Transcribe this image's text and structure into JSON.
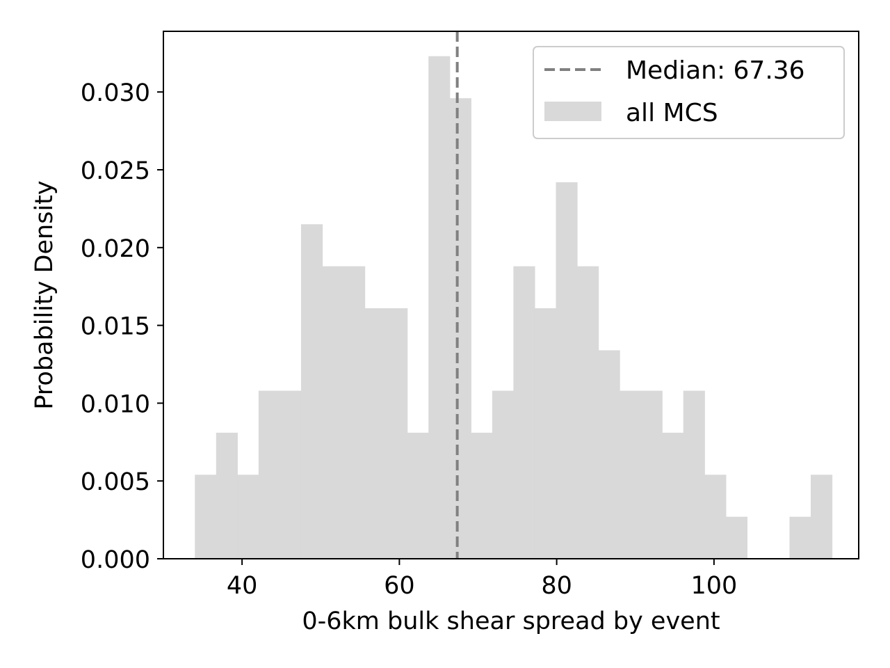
{
  "chart_data": {
    "type": "bar",
    "subtype": "histogram",
    "title": "",
    "xlabel": "0-6km bulk shear spread by event",
    "ylabel": "Probability Density",
    "xlim": [
      30,
      118.4
    ],
    "ylim": [
      0,
      0.0339
    ],
    "xticks": [
      40,
      60,
      80,
      100
    ],
    "xtick_labels": [
      "40",
      "60",
      "80",
      "100"
    ],
    "yticks": [
      0,
      0.005,
      0.01,
      0.015,
      0.02,
      0.025,
      0.03
    ],
    "ytick_labels": [
      "0.000",
      "0.005",
      "0.010",
      "0.015",
      "0.020",
      "0.025",
      "0.030"
    ],
    "bins": {
      "edges": [
        34.0,
        36.7,
        39.4,
        42.1,
        44.8,
        47.5,
        50.2,
        52.9,
        55.6,
        58.3,
        61.0,
        63.7,
        66.4,
        69.1,
        71.8,
        74.5,
        77.2,
        79.9,
        82.6,
        85.3,
        88.0,
        90.7,
        93.4,
        96.1,
        98.8,
        101.5,
        104.2,
        106.9,
        109.6,
        112.3,
        115.0
      ],
      "values": [
        0.0054,
        0.0081,
        0.0054,
        0.0108,
        0.0108,
        0.0215,
        0.0188,
        0.0188,
        0.0161,
        0.0161,
        0.0081,
        0.0323,
        0.0296,
        0.0081,
        0.0108,
        0.0188,
        0.0161,
        0.0242,
        0.0188,
        0.0134,
        0.0108,
        0.0108,
        0.0081,
        0.0108,
        0.0054,
        0.0027,
        0.0,
        0.0,
        0.0027,
        0.0054
      ]
    },
    "series": [
      {
        "name": "all MCS",
        "color": "#d9d9d9"
      }
    ],
    "median": {
      "value": 67.36,
      "label": "Median: 67.36",
      "color": "#808080",
      "style": "dashed"
    },
    "legend": {
      "position": "top-right",
      "entries": [
        {
          "label": "Median: 67.36",
          "kind": "dashed-line",
          "color": "#808080"
        },
        {
          "label": "all MCS",
          "kind": "patch",
          "color": "#d9d9d9"
        }
      ]
    },
    "grid": false
  }
}
